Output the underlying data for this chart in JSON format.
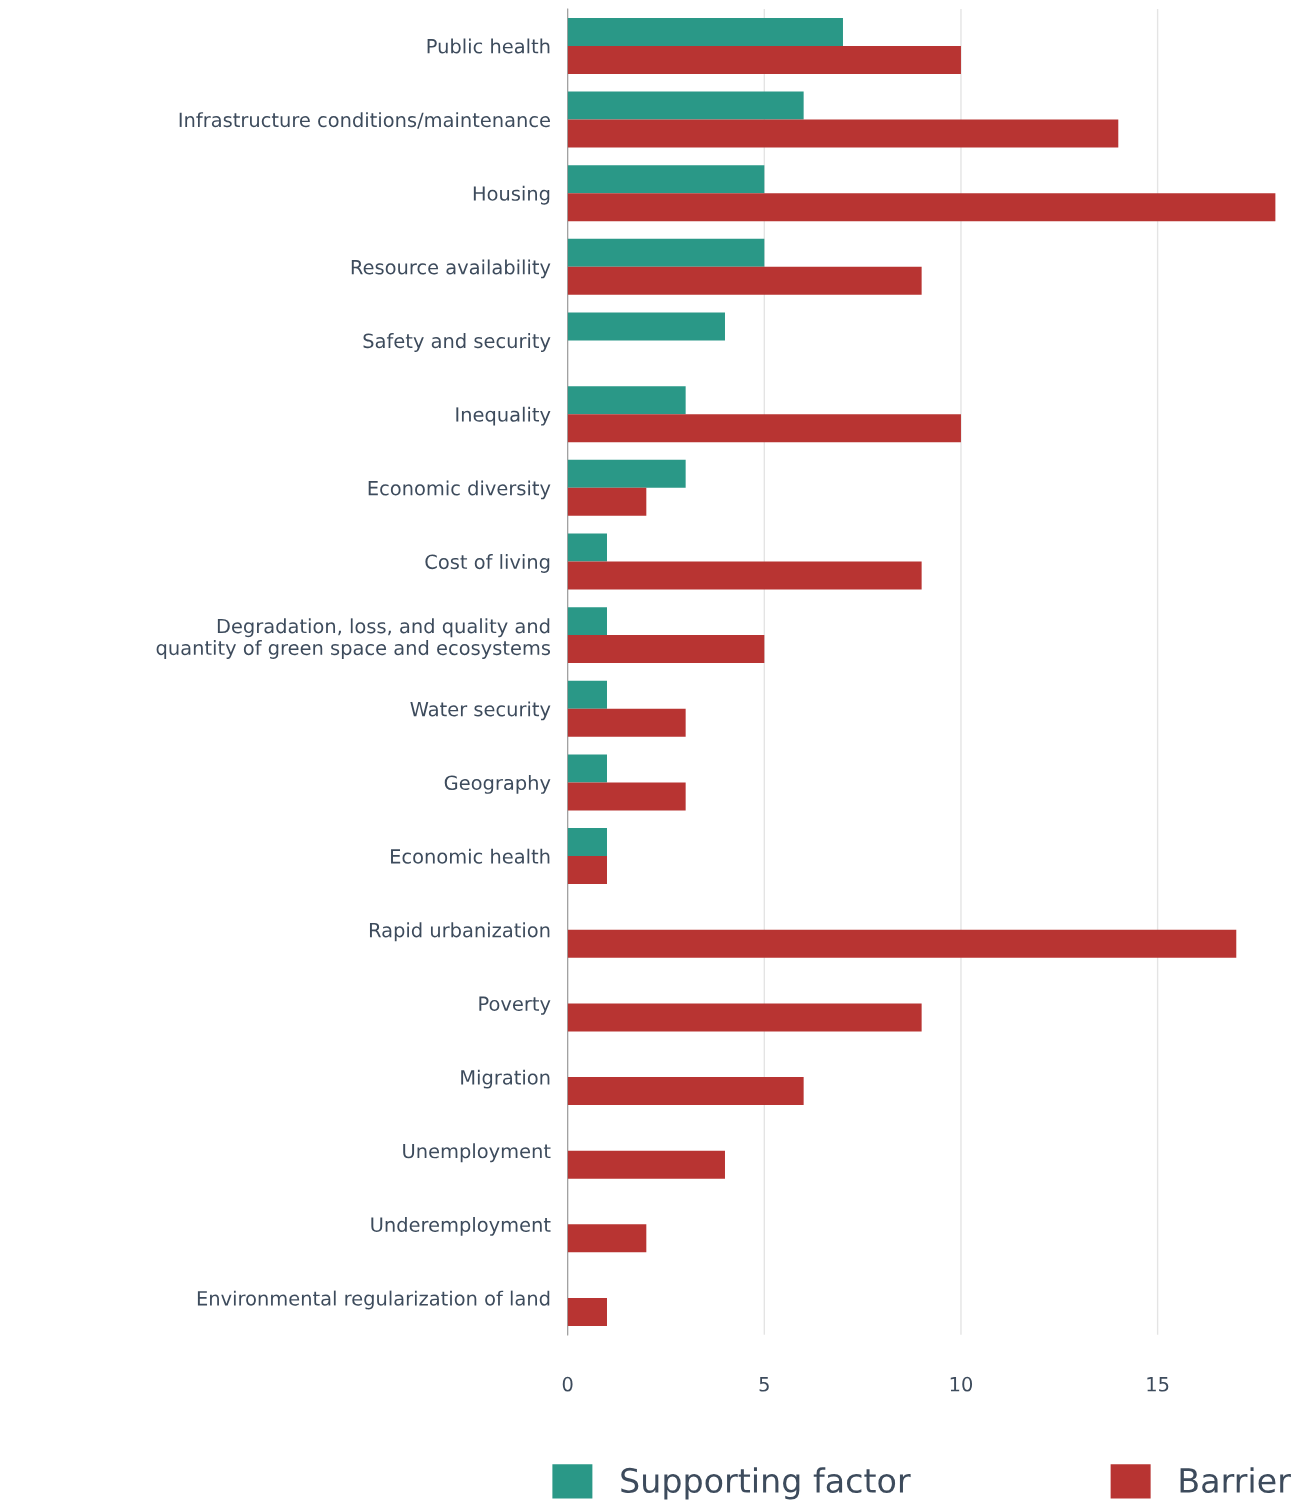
{
  "chart_data": {
    "type": "bar",
    "orientation": "horizontal",
    "categories": [
      "Public health",
      "Infrastructure conditions/maintenance",
      "Housing",
      "Resource availability",
      "Safety and security",
      "Inequality",
      "Economic diversity",
      "Cost of living",
      "Degradation, loss, and quality and\nquantity of green space and ecosystems",
      "Water security",
      "Geography",
      "Economic health",
      "Rapid urbanization",
      "Poverty",
      "Migration",
      "Unemployment",
      "Underemployment",
      "Environmental regularization of land"
    ],
    "series": [
      {
        "name": "Supporting factor",
        "color": "#2a9887",
        "values": [
          7,
          6,
          5,
          5,
          4,
          3,
          3,
          1,
          1,
          1,
          1,
          1,
          null,
          null,
          null,
          null,
          null,
          null
        ]
      },
      {
        "name": "Barrier",
        "color": "#b83432",
        "values": [
          10,
          14,
          18,
          9,
          null,
          10,
          2,
          9,
          5,
          3,
          3,
          1,
          17,
          9,
          6,
          4,
          2,
          1
        ]
      }
    ],
    "xlim": [
      0,
      18
    ],
    "xticks": [
      0,
      5,
      10,
      15
    ],
    "grid": "x",
    "legend": "bottom"
  }
}
